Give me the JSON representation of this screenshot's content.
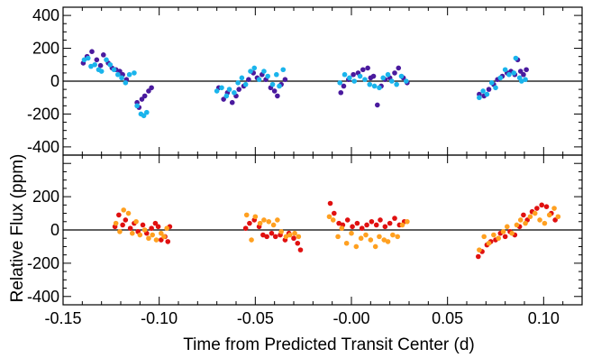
{
  "chart_data": [
    {
      "type": "scatter",
      "panel": "top",
      "xlim": [
        -0.15,
        0.12
      ],
      "ylim": [
        -450,
        450
      ],
      "y_ticks": [
        -400,
        -200,
        0,
        200,
        400
      ],
      "y_tick_labels": [
        "-400",
        "-200",
        "0",
        "200",
        "400"
      ],
      "zero_line": true,
      "series": [
        {
          "color": "#4a1a9e",
          "points": [
            [
              -0.1395,
              110
            ],
            [
              -0.1375,
              150
            ],
            [
              -0.135,
              180
            ],
            [
              -0.1325,
              130
            ],
            [
              -0.1305,
              95
            ],
            [
              -0.129,
              160
            ],
            [
              -0.1265,
              110
            ],
            [
              -0.1245,
              80
            ],
            [
              -0.1225,
              70
            ],
            [
              -0.1205,
              60
            ],
            [
              -0.119,
              40
            ],
            [
              -0.117,
              10
            ],
            [
              -0.1115,
              -130
            ],
            [
              -0.1105,
              -160
            ],
            [
              -0.109,
              -110
            ],
            [
              -0.1075,
              -90
            ],
            [
              -0.1055,
              -60
            ],
            [
              -0.104,
              -40
            ],
            [
              -0.069,
              -40
            ],
            [
              -0.0665,
              -110
            ],
            [
              -0.0645,
              -70
            ],
            [
              -0.062,
              -130
            ],
            [
              -0.06,
              -90
            ],
            [
              -0.0585,
              -50
            ],
            [
              -0.056,
              -30
            ],
            [
              -0.0535,
              10
            ],
            [
              -0.051,
              50
            ],
            [
              -0.049,
              20
            ],
            [
              -0.0465,
              40
            ],
            [
              -0.0445,
              10
            ],
            [
              -0.042,
              -40
            ],
            [
              -0.04,
              -60
            ],
            [
              -0.0385,
              -90
            ],
            [
              -0.0365,
              -20
            ],
            [
              -0.0345,
              10
            ],
            [
              -0.0055,
              -70
            ],
            [
              -0.004,
              -30
            ],
            [
              -0.0015,
              10
            ],
            [
              0.001,
              40
            ],
            [
              0.0035,
              50
            ],
            [
              0.006,
              70
            ],
            [
              0.0085,
              80
            ],
            [
              0.01,
              20
            ],
            [
              0.0115,
              30
            ],
            [
              0.0135,
              -145
            ],
            [
              0.0155,
              -30
            ],
            [
              0.0175,
              10
            ],
            [
              0.02,
              20
            ],
            [
              0.0225,
              50
            ],
            [
              0.0245,
              80
            ],
            [
              0.027,
              20
            ],
            [
              0.029,
              -10
            ],
            [
              0.0665,
              -80
            ],
            [
              0.069,
              -90
            ],
            [
              0.0715,
              -50
            ],
            [
              0.074,
              -20
            ],
            [
              0.076,
              10
            ],
            [
              0.0785,
              30
            ],
            [
              0.081,
              50
            ],
            [
              0.083,
              60
            ],
            [
              0.085,
              40
            ],
            [
              0.0865,
              130
            ],
            [
              0.088,
              60
            ],
            [
              0.0895,
              40
            ],
            [
              0.091,
              70
            ]
          ]
        },
        {
          "color": "#1ab4ec",
          "points": [
            [
              -0.139,
              130
            ],
            [
              -0.137,
              140
            ],
            [
              -0.1355,
              90
            ],
            [
              -0.1335,
              100
            ],
            [
              -0.1315,
              70
            ],
            [
              -0.13,
              60
            ],
            [
              -0.1275,
              130
            ],
            [
              -0.1255,
              100
            ],
            [
              -0.1235,
              70
            ],
            [
              -0.1215,
              40
            ],
            [
              -0.1195,
              20
            ],
            [
              -0.1175,
              -10
            ],
            [
              -0.1155,
              40
            ],
            [
              -0.113,
              50
            ],
            [
              -0.1115,
              -150
            ],
            [
              -0.1095,
              -200
            ],
            [
              -0.108,
              -210
            ],
            [
              -0.1065,
              -190
            ],
            [
              -0.07,
              -60
            ],
            [
              -0.0675,
              -40
            ],
            [
              -0.065,
              -90
            ],
            [
              -0.0635,
              -50
            ],
            [
              -0.061,
              -70
            ],
            [
              -0.059,
              -10
            ],
            [
              -0.057,
              20
            ],
            [
              -0.055,
              -20
            ],
            [
              -0.0525,
              60
            ],
            [
              -0.0505,
              80
            ],
            [
              -0.048,
              10
            ],
            [
              -0.0455,
              60
            ],
            [
              -0.0435,
              30
            ],
            [
              -0.041,
              -20
            ],
            [
              -0.039,
              40
            ],
            [
              -0.0375,
              -30
            ],
            [
              -0.0355,
              70
            ],
            [
              -0.006,
              -10
            ],
            [
              -0.0035,
              40
            ],
            [
              -0.001,
              20
            ],
            [
              0.0015,
              0
            ],
            [
              0.0045,
              30
            ],
            [
              0.007,
              10
            ],
            [
              0.0095,
              -20
            ],
            [
              0.012,
              -30
            ],
            [
              0.0145,
              -40
            ],
            [
              0.0165,
              20
            ],
            [
              0.019,
              40
            ],
            [
              0.021,
              0
            ],
            [
              0.0235,
              -20
            ],
            [
              0.026,
              30
            ],
            [
              0.0285,
              0
            ],
            [
              0.0665,
              -100
            ],
            [
              0.0685,
              -60
            ],
            [
              0.0705,
              -80
            ],
            [
              0.073,
              -10
            ],
            [
              0.075,
              -40
            ],
            [
              0.0775,
              20
            ],
            [
              0.08,
              70
            ],
            [
              0.082,
              40
            ],
            [
              0.0845,
              50
            ],
            [
              0.0855,
              140
            ],
            [
              0.0875,
              20
            ],
            [
              0.0885,
              0
            ],
            [
              0.0905,
              10
            ]
          ]
        }
      ]
    },
    {
      "type": "scatter",
      "panel": "bottom",
      "xlim": [
        -0.15,
        0.12
      ],
      "ylim": [
        -450,
        450
      ],
      "y_ticks": [
        -400,
        -200,
        0,
        200,
        400
      ],
      "y_tick_labels": [
        "-400",
        "-200",
        "0",
        "200"
      ],
      "x_ticks": [
        -0.15,
        -0.1,
        -0.05,
        0.0,
        0.05,
        0.1
      ],
      "x_tick_labels": [
        "-0.15",
        "-0.10",
        "-0.05",
        "-0.00",
        "0.05",
        "0.10"
      ],
      "xlabel": "Time from Predicted Transit Center (d)",
      "ylabel": "Relative Flux (ppm)",
      "zero_line": true,
      "series": [
        {
          "color": "#e01010",
          "points": [
            [
              -0.123,
              20
            ],
            [
              -0.121,
              90
            ],
            [
              -0.119,
              30
            ],
            [
              -0.1175,
              60
            ],
            [
              -0.115,
              10
            ],
            [
              -0.113,
              40
            ],
            [
              -0.111,
              -10
            ],
            [
              -0.1085,
              30
            ],
            [
              -0.1065,
              -20
            ],
            [
              -0.104,
              10
            ],
            [
              -0.102,
              40
            ],
            [
              -0.1005,
              20
            ],
            [
              -0.099,
              -60
            ],
            [
              -0.097,
              -40
            ],
            [
              -0.0955,
              -70
            ],
            [
              -0.0945,
              20
            ],
            [
              -0.055,
              10
            ],
            [
              -0.053,
              40
            ],
            [
              -0.0505,
              60
            ],
            [
              -0.048,
              20
            ],
            [
              -0.046,
              -30
            ],
            [
              -0.044,
              -40
            ],
            [
              -0.0415,
              -20
            ],
            [
              -0.0395,
              -40
            ],
            [
              -0.037,
              -30
            ],
            [
              -0.0345,
              -60
            ],
            [
              -0.0325,
              -20
            ],
            [
              -0.03,
              -50
            ],
            [
              -0.028,
              -80
            ],
            [
              -0.0265,
              -120
            ],
            [
              -0.011,
              160
            ],
            [
              -0.009,
              100
            ],
            [
              -0.0065,
              40
            ],
            [
              -0.0045,
              30
            ],
            [
              -0.002,
              60
            ],
            [
              0.0005,
              20
            ],
            [
              0.003,
              40
            ],
            [
              0.0055,
              10
            ],
            [
              0.008,
              30
            ],
            [
              0.0105,
              50
            ],
            [
              0.013,
              30
            ],
            [
              0.015,
              60
            ],
            [
              0.0175,
              20
            ],
            [
              0.02,
              40
            ],
            [
              0.0225,
              70
            ],
            [
              0.025,
              30
            ],
            [
              0.0275,
              50
            ],
            [
              0.066,
              -160
            ],
            [
              0.068,
              -130
            ],
            [
              0.0705,
              -90
            ],
            [
              0.0725,
              -70
            ],
            [
              0.075,
              -60
            ],
            [
              0.0775,
              -20
            ],
            [
              0.08,
              -40
            ],
            [
              0.0825,
              -10
            ],
            [
              0.085,
              -30
            ],
            [
              0.0875,
              20
            ],
            [
              0.0895,
              90
            ],
            [
              0.0915,
              60
            ],
            [
              0.094,
              110
            ],
            [
              0.0965,
              130
            ],
            [
              0.099,
              150
            ],
            [
              0.1015,
              140
            ],
            [
              0.104,
              100
            ],
            [
              0.106,
              60
            ]
          ]
        },
        {
          "color": "#ffa020",
          "points": [
            [
              -0.1225,
              40
            ],
            [
              -0.1205,
              -10
            ],
            [
              -0.1185,
              120
            ],
            [
              -0.116,
              100
            ],
            [
              -0.114,
              -20
            ],
            [
              -0.112,
              50
            ],
            [
              -0.11,
              -30
            ],
            [
              -0.1075,
              0
            ],
            [
              -0.1055,
              -50
            ],
            [
              -0.1035,
              -30
            ],
            [
              -0.1015,
              -60
            ],
            [
              -0.099,
              -20
            ],
            [
              -0.0975,
              -40
            ],
            [
              -0.096,
              10
            ],
            [
              -0.0545,
              90
            ],
            [
              -0.052,
              -60
            ],
            [
              -0.05,
              80
            ],
            [
              -0.0475,
              40
            ],
            [
              -0.0455,
              60
            ],
            [
              -0.043,
              50
            ],
            [
              -0.0405,
              30
            ],
            [
              -0.0385,
              60
            ],
            [
              -0.0365,
              -10
            ],
            [
              -0.034,
              -40
            ],
            [
              -0.032,
              -30
            ],
            [
              -0.0295,
              -20
            ],
            [
              -0.0275,
              -40
            ],
            [
              -0.0115,
              80
            ],
            [
              -0.0095,
              60
            ],
            [
              -0.007,
              -40
            ],
            [
              -0.005,
              10
            ],
            [
              -0.0025,
              -80
            ],
            [
              0.0,
              -20
            ],
            [
              0.0025,
              -100
            ],
            [
              0.005,
              -50
            ],
            [
              0.0075,
              -30
            ],
            [
              0.01,
              -60
            ],
            [
              0.0125,
              -100
            ],
            [
              0.0145,
              -40
            ],
            [
              0.017,
              -60
            ],
            [
              0.019,
              -70
            ],
            [
              0.0215,
              -30
            ],
            [
              0.024,
              -40
            ],
            [
              0.0265,
              30
            ],
            [
              0.029,
              50
            ],
            [
              0.0665,
              -120
            ],
            [
              0.069,
              -40
            ],
            [
              0.0715,
              -80
            ],
            [
              0.074,
              -30
            ],
            [
              0.0765,
              -50
            ],
            [
              0.079,
              -10
            ],
            [
              0.081,
              20
            ],
            [
              0.0835,
              -20
            ],
            [
              0.086,
              30
            ],
            [
              0.088,
              60
            ],
            [
              0.0905,
              40
            ],
            [
              0.093,
              80
            ],
            [
              0.0955,
              100
            ],
            [
              0.098,
              60
            ],
            [
              0.1005,
              40
            ],
            [
              0.103,
              90
            ],
            [
              0.1055,
              130
            ],
            [
              0.1075,
              80
            ]
          ]
        }
      ]
    }
  ]
}
